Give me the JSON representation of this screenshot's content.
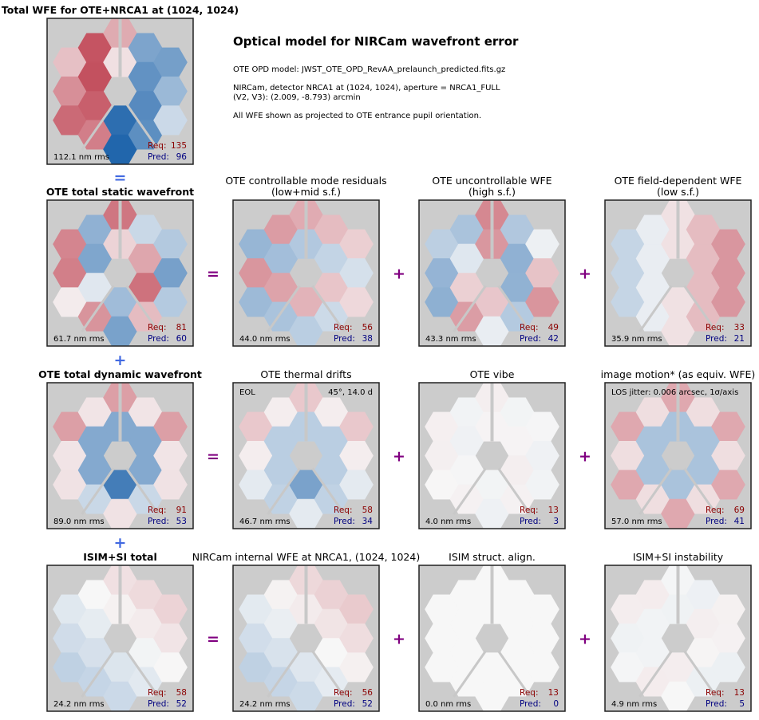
{
  "header": {
    "title": "Optical model for NIRCam wavefront error",
    "lines": [
      "OTE OPD model: JWST_OTE_OPD_RevAA_prelaunch_predicted.fits.gz",
      "NIRCam, detector NRCA1 at (1024, 1024), aperture = NRCA1_FULL",
      "(V2, V3):  (2.009, -8.793) arcmin",
      "All WFE shown as projected to OTE entrance pupil orientation."
    ]
  },
  "summary": {
    "title": [
      "Total WFE for OTE+NRCA1 at (1024, 1024)"
    ],
    "rms": "112.1 nm rms",
    "req_label": "Req:",
    "req": 135,
    "pred_label": "Pred:",
    "pred": 96
  },
  "rows": [
    {
      "join": "=",
      "ops": [
        "=",
        "+",
        "+"
      ],
      "panels": [
        {
          "title": [
            "OTE total static wavefront"
          ],
          "rms": "61.7 nm rms",
          "req_label": "Req:",
          "req": 81,
          "pred_label": "Pred:",
          "pred": 60
        },
        {
          "title": [
            "OTE controllable mode residuals",
            "(low+mid s.f.)"
          ],
          "rms": "44.0 nm rms",
          "req_label": "Req:",
          "req": 56,
          "pred_label": "Pred:",
          "pred": 38
        },
        {
          "title": [
            "OTE uncontrollable WFE",
            "(high s.f.)"
          ],
          "rms": "43.3 nm rms",
          "req_label": "Req:",
          "req": 49,
          "pred_label": "Pred:",
          "pred": 42
        },
        {
          "title": [
            "OTE field-dependent WFE",
            "(low s.f.)"
          ],
          "rms": "35.9 nm rms",
          "req_label": "Req:",
          "req": 33,
          "pred_label": "Pred:",
          "pred": 21
        }
      ]
    },
    {
      "join": "+",
      "ops": [
        "=",
        "+",
        "+"
      ],
      "panels": [
        {
          "title": [
            "OTE total dynamic wavefront"
          ],
          "rms": "89.0 nm rms",
          "req_label": "Req:",
          "req": 91,
          "pred_label": "Pred:",
          "pred": 53
        },
        {
          "title": [
            "OTE thermal drifts"
          ],
          "rms": "46.7 nm rms",
          "req_label": "Req:",
          "req": 58,
          "pred_label": "Pred:",
          "pred": 34,
          "notes": [
            "EOL",
            "45°, 14.0 d"
          ]
        },
        {
          "title": [
            "OTE vibe"
          ],
          "rms": "4.0 nm rms",
          "req_label": "Req:",
          "req": 13,
          "pred_label": "Pred:",
          "pred": 3
        },
        {
          "title": [
            "image motion* (as equiv. WFE)"
          ],
          "rms": "57.0 nm rms",
          "req_label": "Req:",
          "req": 69,
          "pred_label": "Pred:",
          "pred": 41,
          "notes": [
            "LOS jitter: 0.006 arcsec, 1σ/axis"
          ]
        }
      ]
    },
    {
      "join": "+",
      "ops": [
        "=",
        "+",
        "+"
      ],
      "panels": [
        {
          "title": [
            "ISIM+SI total"
          ],
          "rms": "24.2 nm rms",
          "req_label": "Req:",
          "req": 58,
          "pred_label": "Pred:",
          "pred": 52
        },
        {
          "title": [
            "NIRCam internal WFE at NRCA1, (1024, 1024)"
          ],
          "rms": "24.2 nm rms",
          "req_label": "Req:",
          "req": 56,
          "pred_label": "Pred:",
          "pred": 52
        },
        {
          "title": [
            "ISIM struct. align."
          ],
          "rms": "0.0 nm rms",
          "req_label": "Req:",
          "req": 13,
          "pred_label": "Pred:",
          "pred": 0
        },
        {
          "title": [
            "ISIM+SI instability"
          ],
          "rms": "4.9 nm rms",
          "req_label": "Req:",
          "req": 13,
          "pred_label": "Pred:",
          "pred": 5
        }
      ]
    }
  ]
}
